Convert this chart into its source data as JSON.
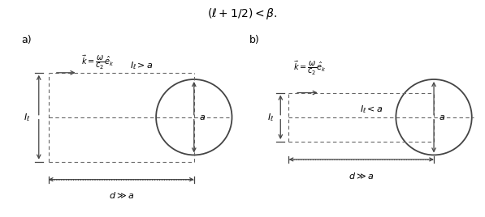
{
  "bg_color": "#ffffff",
  "line_color": "#444444",
  "dash_color": "#666666",
  "title_fontsize": 10,
  "label_fontsize": 9,
  "math_fontsize": 8,
  "small_math_fontsize": 7
}
